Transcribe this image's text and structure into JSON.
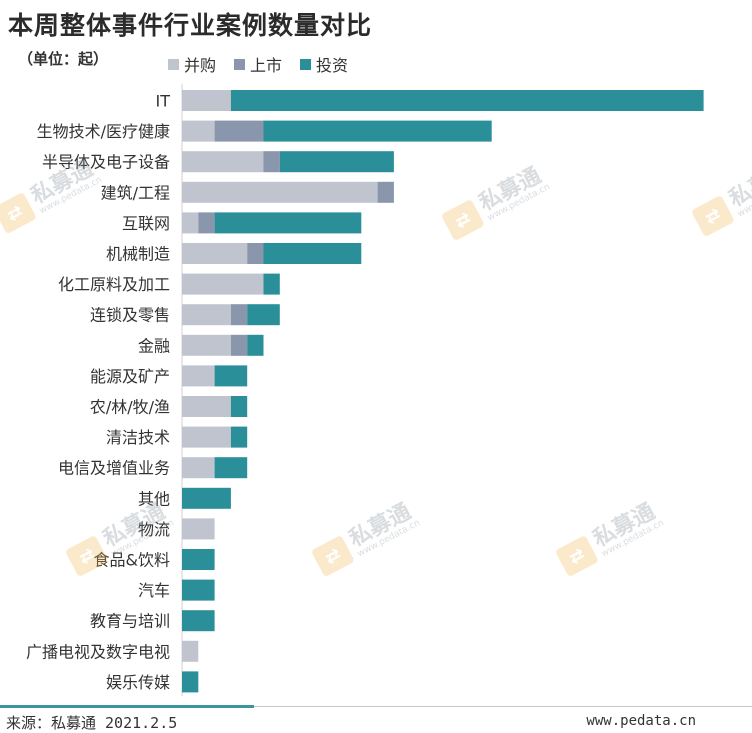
{
  "chart_data": {
    "type": "bar",
    "orientation": "horizontal",
    "stacked": true,
    "title": "本周整体事件行业案例数量对比",
    "unit_label": "（单位：起）",
    "categories": [
      "IT",
      "生物技术/医疗健康",
      "半导体及电子设备",
      "建筑/工程",
      "互联网",
      "机械制造",
      "化工原料及加工",
      "连锁及零售",
      "金融",
      "能源及矿产",
      "农/林/牧/渔",
      "清洁技术",
      "电信及增值业务",
      "其他",
      "物流",
      "食品&饮料",
      "汽车",
      "教育与培训",
      "广播电视及数字电视",
      "娱乐传媒"
    ],
    "series": [
      {
        "name": "并购",
        "color": "#bfc4cf",
        "values": [
          3,
          2,
          5,
          12,
          1,
          4,
          5,
          3,
          3,
          2,
          3,
          3,
          2,
          0,
          2,
          0,
          0,
          0,
          1,
          0
        ]
      },
      {
        "name": "上市",
        "color": "#8996ac",
        "values": [
          0,
          3,
          1,
          1,
          1,
          1,
          0,
          1,
          1,
          0,
          0,
          0,
          0,
          0,
          0,
          0,
          0,
          0,
          0,
          0
        ]
      },
      {
        "name": "投资",
        "color": "#2a8f98",
        "values": [
          29,
          14,
          7,
          0,
          9,
          6,
          1,
          2,
          1,
          2,
          1,
          1,
          2,
          3,
          0,
          2,
          2,
          2,
          0,
          1
        ]
      }
    ],
    "grid": false,
    "legend": "top",
    "show_x_axis": false
  },
  "watermark": {
    "name": "私募通",
    "url": "www.pedata.cn"
  },
  "footer": {
    "source": "来源：私募通 2021.2.5",
    "site": "www.pedata.cn"
  }
}
